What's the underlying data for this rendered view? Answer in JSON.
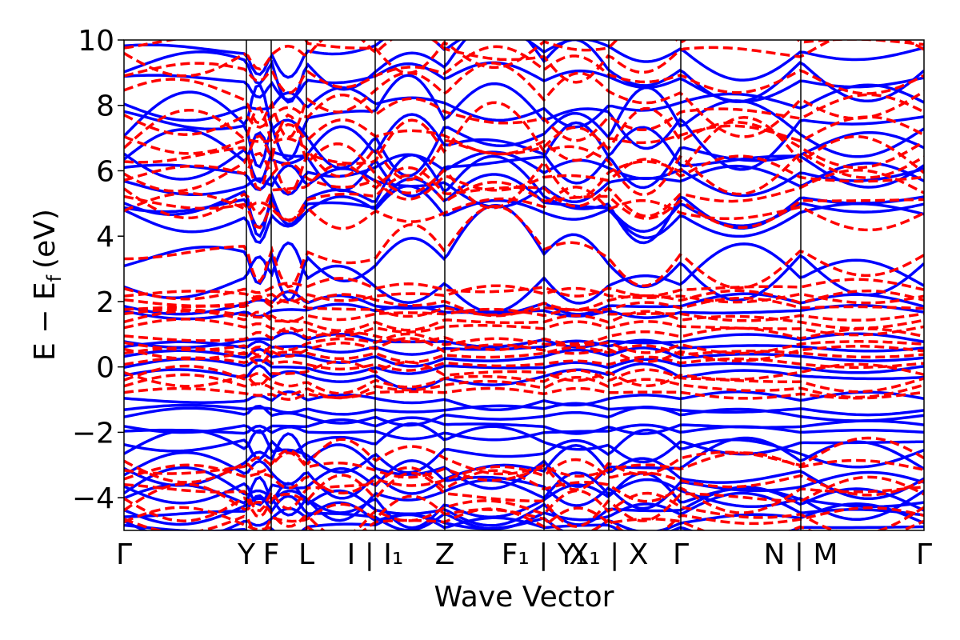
{
  "chart_data": {
    "type": "line",
    "xlabel": "Wave Vector",
    "ylabel": "E − E",
    "ylabel_subscript": "f",
    "ylabel_unit": "(eV)",
    "ylim": [
      -5,
      10
    ],
    "yticks": [
      {
        "value": 10,
        "label": "10"
      },
      {
        "value": 8,
        "label": "8"
      },
      {
        "value": 6,
        "label": "6"
      },
      {
        "value": 4,
        "label": "4"
      },
      {
        "value": 2,
        "label": "2"
      },
      {
        "value": 0,
        "label": "0"
      },
      {
        "value": -2,
        "label": "−2"
      },
      {
        "value": -4,
        "label": "−4"
      }
    ],
    "kpoints": [
      {
        "label": "Γ",
        "pos": 0.0
      },
      {
        "label": "Y",
        "pos": 0.153
      },
      {
        "label": "F",
        "pos": 0.184
      },
      {
        "label": "L",
        "pos": 0.228
      },
      {
        "label": "I | I₁",
        "pos": 0.314
      },
      {
        "label": "Z",
        "pos": 0.401
      },
      {
        "label": "F₁ | Y₁",
        "pos": 0.525
      },
      {
        "label": "X₁ | X",
        "pos": 0.606
      },
      {
        "label": "Γ",
        "pos": 0.696
      },
      {
        "label": "N | M",
        "pos": 0.846
      },
      {
        "label": "Γ",
        "pos": 1.0
      }
    ],
    "series": [
      {
        "style": "solid",
        "color": "#0000ff",
        "bands_at_gamma": [
          -4.9,
          -4.7,
          -4.5,
          -4.3,
          -4.1,
          -3.9,
          -3.6,
          -3.3,
          -3.0,
          -2.6,
          -2.3,
          -2.0,
          -1.8,
          -1.5,
          -1.3,
          -1.0,
          -0.3,
          0.0,
          0.3,
          0.6,
          0.8,
          1.7,
          1.9,
          2.6,
          3.3,
          4.7,
          5.0,
          5.2,
          5.6,
          6.0,
          6.3,
          6.6,
          7.2,
          7.6,
          8.0,
          8.8,
          9.2,
          9.7
        ]
      },
      {
        "style": "dashed",
        "color": "#ff0000",
        "bands_at_gamma": [
          -4.8,
          -4.6,
          -4.4,
          -4.0,
          -3.7,
          -3.4,
          -3.1,
          -2.9,
          -0.8,
          -0.6,
          -0.4,
          -0.2,
          0.1,
          0.4,
          0.5,
          0.7,
          0.9,
          1.2,
          1.4,
          1.6,
          1.8,
          2.0,
          2.2,
          2.4,
          3.5,
          4.8,
          5.1,
          5.4,
          5.8,
          6.1,
          6.5,
          6.8,
          7.0,
          7.7,
          8.3,
          9.0,
          9.6,
          9.9
        ]
      }
    ],
    "colors": {
      "solid": "#0000ff",
      "dashed": "#ff0000",
      "axes": "#000000"
    }
  }
}
